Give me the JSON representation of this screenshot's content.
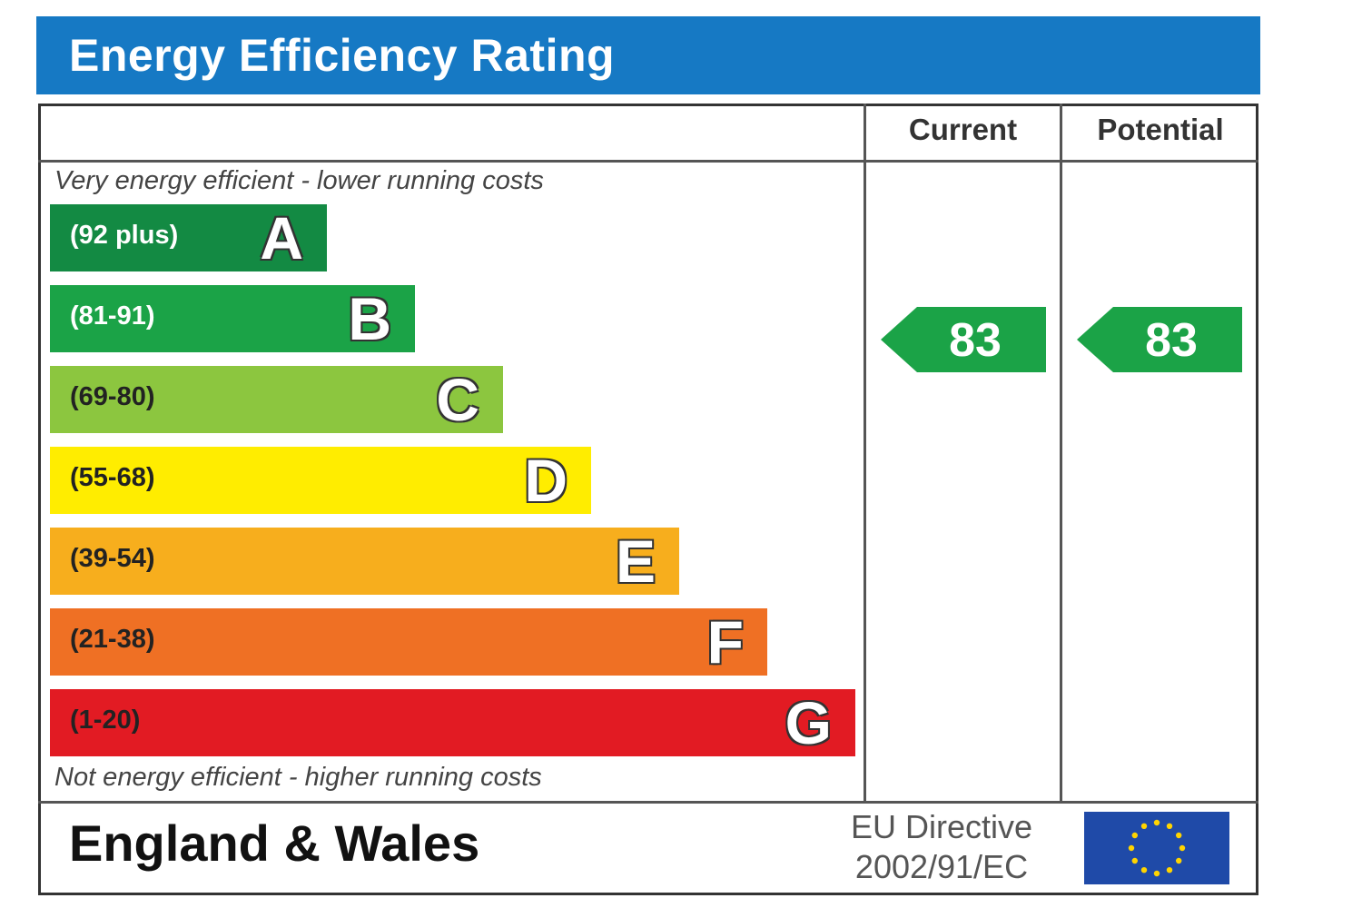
{
  "header": {
    "title": "Energy Efficiency Rating"
  },
  "columns": {
    "current_label": "Current",
    "potential_label": "Potential"
  },
  "notes": {
    "top": "Very energy efficient - lower running costs",
    "bottom": "Not energy efficient - higher running costs"
  },
  "footer": {
    "region": "England & Wales",
    "directive_line1": "EU Directive",
    "directive_line2": "2002/91/EC",
    "flag_icon": "eu-flag-icon"
  },
  "chart_data": {
    "type": "bar",
    "title": "Energy Efficiency Rating",
    "categories": [
      "A",
      "B",
      "C",
      "D",
      "E",
      "F",
      "G"
    ],
    "ranges": [
      "(92 plus)",
      "(81-91)",
      "(69-80)",
      "(55-68)",
      "(39-54)",
      "(21-38)",
      "(1-20)"
    ],
    "colors": [
      "#138a43",
      "#1ba347",
      "#8cc63f",
      "#ffed00",
      "#f7ae1d",
      "#ef7024",
      "#e21b23"
    ],
    "range_text_colors": [
      "#ffffff",
      "#ffffff",
      "#222222",
      "#222222",
      "#222222",
      "#222222",
      "#222222"
    ],
    "current": {
      "value": 83,
      "band": "B",
      "color": "#1ba347"
    },
    "potential": {
      "value": 83,
      "band": "B",
      "color": "#1ba347"
    }
  }
}
